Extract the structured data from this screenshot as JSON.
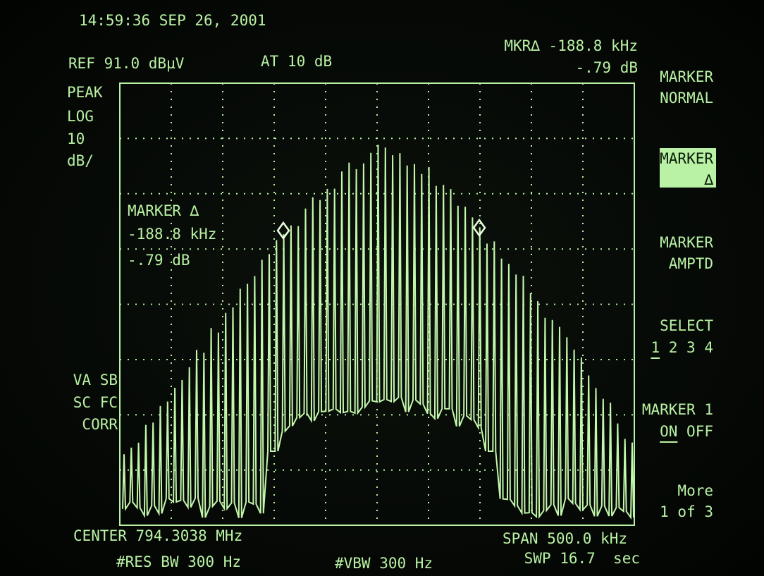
{
  "header": {
    "timestamp": "14:59:36 SEP 26, 2001",
    "reference_level": "REF 91.0 dBµV",
    "attenuation": "AT 10 dB",
    "marker_readout": {
      "delta": "MKR∆ -188.8 kHz",
      "amplitude": "-.79 dB"
    }
  },
  "left_labels": {
    "detector": "PEAK",
    "scale": [
      "LOG",
      "10",
      "dB/"
    ],
    "corrections": [
      "VA SB",
      "SC FC",
      "CORR"
    ]
  },
  "marker_annotation": [
    "MARKER ∆",
    "-188.8 kHz",
    "-.79 dB"
  ],
  "footer": {
    "center": "CENTER 794.3038 MHz",
    "res_bw": "#RES BW 300 Hz",
    "vbw": "#VBW 300 Hz",
    "span": "SPAN 500.0 kHz",
    "sweep": "SWP 16.7  sec"
  },
  "softkeys": [
    {
      "lines": [
        "MARKER",
        "NORMAL"
      ]
    },
    {
      "lines": [
        "MARKER",
        "∆"
      ],
      "active": true
    },
    {
      "lines": [
        "MARKER",
        "AMPTD"
      ]
    },
    {
      "lines": [
        "SELECT"
      ],
      "options": [
        "1",
        "2",
        "3",
        "4"
      ],
      "selected": 0
    },
    {
      "lines": [
        "MARKER 1"
      ],
      "options": [
        "ON",
        "OFF"
      ],
      "selected": 0
    },
    {
      "lines": [
        "More",
        "1 of 3"
      ]
    }
  ]
}
